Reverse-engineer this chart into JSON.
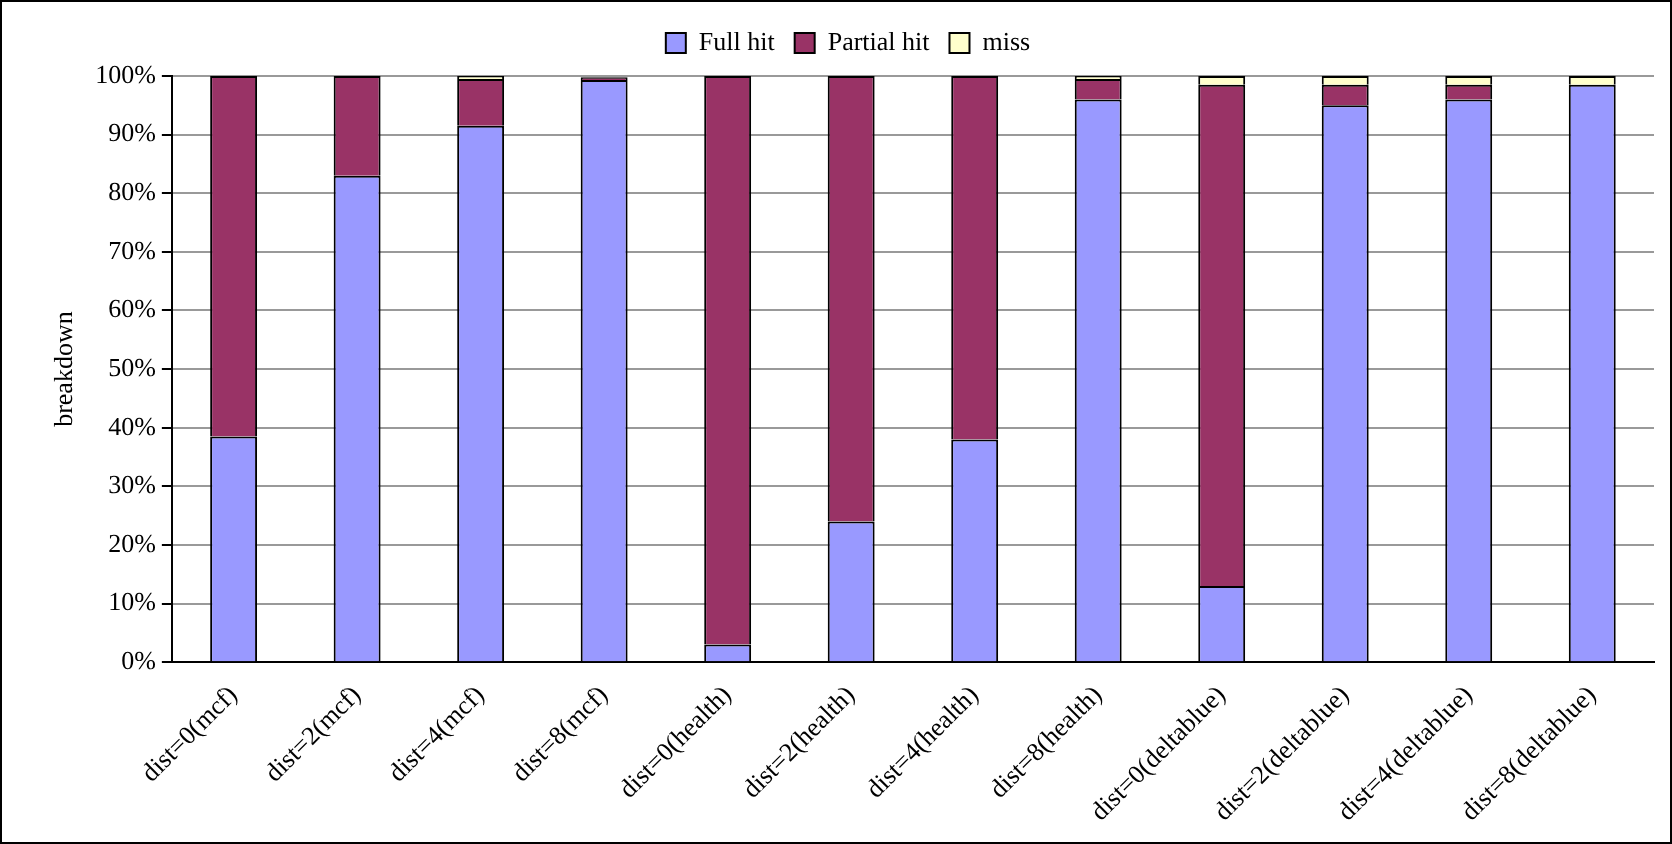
{
  "chart_data": {
    "type": "bar",
    "stacked": true,
    "ylabel": "breakdown",
    "categories": [
      "dist=0(mcf)",
      "dist=2(mcf)",
      "dist=4(mcf)",
      "dist=8(mcf)",
      "dist=0(health)",
      "dist=2(health)",
      "dist=4(health)",
      "dist=8(health)",
      "dist=0(deltablue)",
      "dist=2(deltablue)",
      "dist=4(deltablue)",
      "dist=8(deltablue)"
    ],
    "series": [
      {
        "name": "Full hit",
        "color": "#9999ff",
        "values": [
          38.5,
          83,
          91.5,
          99.3,
          3,
          24,
          38,
          96,
          13,
          95,
          96,
          98.5
        ]
      },
      {
        "name": "Partial hit",
        "color": "#993366",
        "values": [
          61.5,
          17,
          8,
          0.5,
          97,
          76,
          62,
          3.5,
          85.5,
          3.5,
          2.5,
          0
        ]
      },
      {
        "name": "miss",
        "color": "#ffffcc",
        "values": [
          0,
          0,
          0.5,
          null,
          0,
          0,
          0,
          0.5,
          1.5,
          1.5,
          1.5,
          1.5
        ]
      }
    ],
    "ylim": [
      0,
      100
    ],
    "yticks": [
      {
        "value": 0,
        "label": "0%"
      },
      {
        "value": 10,
        "label": "10%"
      },
      {
        "value": 20,
        "label": "20%"
      },
      {
        "value": 30,
        "label": "30%"
      },
      {
        "value": 40,
        "label": "40%"
      },
      {
        "value": 50,
        "label": "50%"
      },
      {
        "value": 60,
        "label": "60%"
      },
      {
        "value": 70,
        "label": "70%"
      },
      {
        "value": 80,
        "label": "80%"
      },
      {
        "value": 90,
        "label": "90%"
      },
      {
        "value": 100,
        "label": "100%"
      }
    ],
    "grid": "y",
    "legend": "top"
  }
}
